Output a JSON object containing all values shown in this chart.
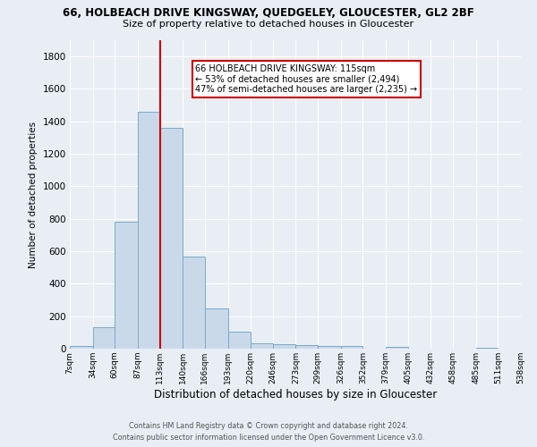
{
  "title_line1": "66, HOLBEACH DRIVE KINGSWAY, QUEDGELEY, GLOUCESTER, GL2 2BF",
  "title_line2": "Size of property relative to detached houses in Gloucester",
  "xlabel": "Distribution of detached houses by size in Gloucester",
  "ylabel": "Number of detached properties",
  "bin_edges": [
    7,
    34,
    60,
    87,
    113,
    140,
    166,
    193,
    220,
    246,
    273,
    299,
    326,
    352,
    379,
    405,
    432,
    458,
    485,
    511,
    538
  ],
  "bar_heights": [
    15,
    130,
    780,
    1460,
    1360,
    570,
    250,
    105,
    35,
    30,
    20,
    15,
    15,
    0,
    10,
    0,
    0,
    0,
    5,
    0
  ],
  "bar_color": "#c9d9ea",
  "bar_edge_color": "#7aaac8",
  "vline_x": 113,
  "vline_color": "#cc0000",
  "ylim": [
    0,
    1900
  ],
  "yticks": [
    0,
    200,
    400,
    600,
    800,
    1000,
    1200,
    1400,
    1600,
    1800
  ],
  "xtick_labels": [
    "7sqm",
    "34sqm",
    "60sqm",
    "87sqm",
    "113sqm",
    "140sqm",
    "166sqm",
    "193sqm",
    "220sqm",
    "246sqm",
    "273sqm",
    "299sqm",
    "326sqm",
    "352sqm",
    "379sqm",
    "405sqm",
    "432sqm",
    "458sqm",
    "485sqm",
    "511sqm",
    "538sqm"
  ],
  "annotation_title": "66 HOLBEACH DRIVE KINGSWAY: 115sqm",
  "annotation_line2": "← 53% of detached houses are smaller (2,494)",
  "annotation_line3": "47% of semi-detached houses are larger (2,235) →",
  "annotation_box_color": "#ffffff",
  "annotation_edge_color": "#cc0000",
  "footer_line1": "Contains HM Land Registry data © Crown copyright and database right 2024.",
  "footer_line2": "Contains public sector information licensed under the Open Government Licence v3.0.",
  "background_color": "#e8eef4",
  "grid_color": "#ffffff",
  "figsize": [
    6.0,
    5.0
  ],
  "dpi": 100
}
